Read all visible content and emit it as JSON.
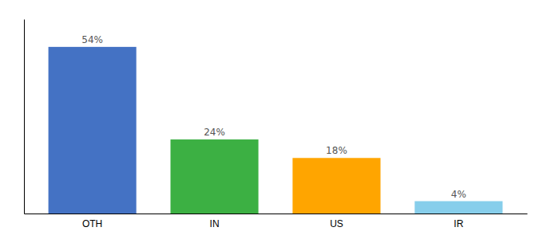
{
  "chart_data": {
    "type": "bar",
    "categories": [
      "OTH",
      "IN",
      "US",
      "IR"
    ],
    "values": [
      54,
      24,
      18,
      4
    ],
    "value_labels": [
      "54%",
      "24%",
      "18%",
      "4%"
    ],
    "colors": [
      "#4472C4",
      "#3CB043",
      "#FFA500",
      "#87CEEB"
    ],
    "ylim": [
      0,
      63
    ],
    "data_labels": true,
    "tick_labels": "x",
    "grid": false
  }
}
